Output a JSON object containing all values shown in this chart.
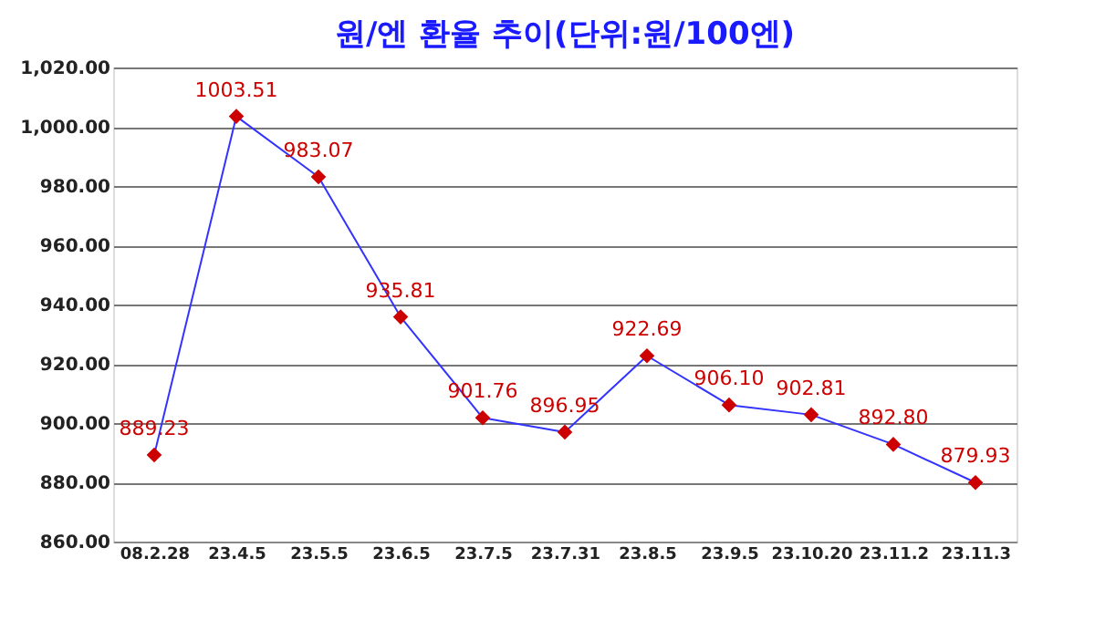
{
  "chart_data": {
    "type": "line",
    "title": "원/엔 환율 추이(단위:원/100엔)",
    "categories": [
      "08.2.28",
      "23.4.5",
      "23.5.5",
      "23.6.5",
      "23.7.5",
      "23.7.31",
      "23.8.5",
      "23.9.5",
      "23.10.20",
      "23.11.2",
      "23.11.3"
    ],
    "series": [
      {
        "color": "#3333ff",
        "colors": [
          "#cc0000",
          "#cc0000",
          "#cc0000",
          "#cc0000",
          "#cc0000",
          "#cc0000",
          "#cc0000",
          "#cc0000",
          "#cc0000",
          "#cc0000",
          "#cc0000"
        ],
        "values": [
          889.23,
          1003.51,
          983.07,
          935.81,
          901.76,
          896.95,
          922.69,
          906.1,
          902.81,
          892.8,
          879.93
        ],
        "value_labels": [
          "889.23",
          "1003.51",
          "983.07",
          "935.81",
          "901.76",
          "896.95",
          "922.69",
          "906.10",
          "902.81",
          "892.80",
          "879.93"
        ]
      }
    ],
    "ylim": [
      860,
      1020
    ],
    "yticks": [
      {
        "value": 860,
        "label": "860.00"
      },
      {
        "value": 880,
        "label": "880.00"
      },
      {
        "value": 900,
        "label": "900.00"
      },
      {
        "value": 920,
        "label": "920.00"
      },
      {
        "value": 940,
        "label": "940.00"
      },
      {
        "value": 960,
        "label": "960.00"
      },
      {
        "value": 980,
        "label": "980.00"
      },
      {
        "value": 1000,
        "label": "1,000.00"
      },
      {
        "value": 1020,
        "label": "1,020.00"
      }
    ],
    "grid": "y",
    "legend": false,
    "marker": "diamond",
    "line_style": "solid"
  }
}
